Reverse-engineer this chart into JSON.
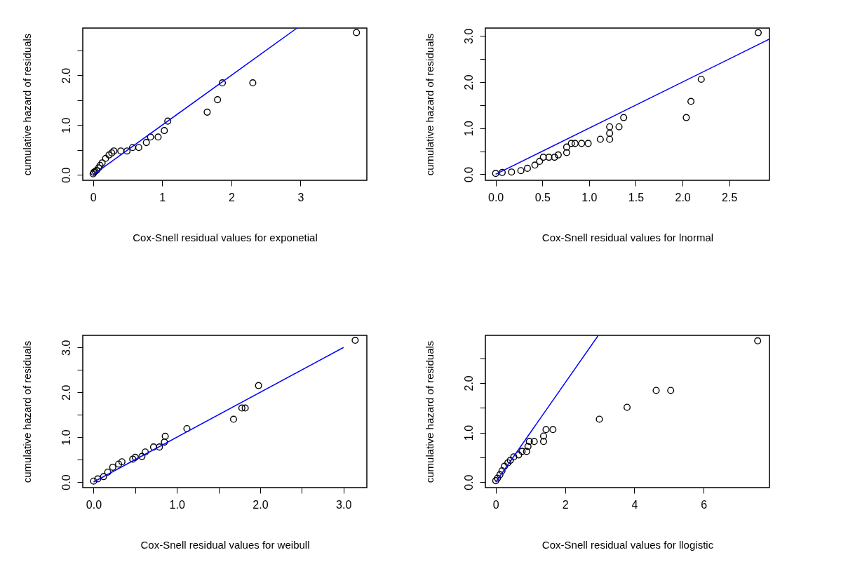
{
  "chart_data": [
    {
      "type": "scatter",
      "xlabel": "Cox-Snell residual values for exponetial",
      "ylabel": "cumulative hazard of residuals",
      "xlim": [
        -0.15,
        3.96
      ],
      "ylim": [
        -0.11,
        2.95
      ],
      "xticks": [
        0,
        1,
        2,
        3
      ],
      "yticks": [
        {
          "value": 0,
          "label": "0.0"
        },
        {
          "value": 0.5,
          "label": null
        },
        {
          "value": 1,
          "label": "1.0"
        },
        {
          "value": 1.5,
          "label": null
        },
        {
          "value": 2,
          "label": "2.0"
        },
        {
          "value": 2.5,
          "label": null
        }
      ],
      "grid": false,
      "series": [
        {
          "marker": "circle",
          "color": "#000000",
          "x": [
            3.81,
            2.31,
            1.87,
            1.8,
            1.65,
            1.08,
            1.03,
            0.94,
            0.83,
            0.77,
            0.66,
            0.57,
            0.49,
            0.4,
            0.3,
            0.27,
            0.23,
            0.18,
            0.13,
            0.1,
            0.08,
            0.05,
            0.03,
            0.01,
            0.0
          ],
          "values": [
            2.86,
            1.85,
            1.85,
            1.51,
            1.26,
            1.08,
            0.89,
            0.76,
            0.76,
            0.65,
            0.55,
            0.55,
            0.48,
            0.48,
            0.48,
            0.44,
            0.4,
            0.33,
            0.24,
            0.19,
            0.14,
            0.09,
            0.07,
            0.05,
            0.02
          ]
        },
        {
          "type": "line",
          "marker": "none",
          "color": "#0000ff",
          "x": [
            0,
            2.95
          ],
          "values": [
            0,
            2.95
          ]
        }
      ]
    },
    {
      "type": "scatter",
      "xlabel": "Cox-Snell residual values for lnormal",
      "ylabel": "cumulative hazard of residuals",
      "xlim": [
        -0.11,
        2.93
      ],
      "ylim": [
        -0.13,
        3.17
      ],
      "xticks": [
        {
          "value": 0,
          "label": "0.0"
        },
        0.5,
        {
          "value": 1,
          "label": "1.0"
        },
        1.5,
        {
          "value": 2,
          "label": "2.0"
        },
        2.5
      ],
      "yticks": [
        {
          "value": 0,
          "label": "0.0"
        },
        {
          "value": 0.5,
          "label": null
        },
        {
          "value": 1,
          "label": "1.0"
        },
        {
          "value": 1.5,
          "label": null
        },
        {
          "value": 2,
          "label": "2.0"
        },
        {
          "value": 2.5,
          "label": null
        },
        {
          "value": 3,
          "label": "3.0"
        }
      ],
      "grid": false,
      "series": [
        {
          "marker": "circle",
          "color": "#000000",
          "x": [
            2.81,
            2.2,
            2.09,
            2.04,
            1.37,
            1.32,
            1.22,
            1.22,
            1.22,
            1.12,
            0.99,
            0.92,
            0.85,
            0.81,
            0.76,
            0.76,
            0.67,
            0.63,
            0.57,
            0.51,
            0.47,
            0.42,
            0.34,
            0.27,
            0.17,
            0.07,
            0.0
          ],
          "values": [
            3.07,
            2.06,
            1.58,
            1.23,
            1.23,
            1.03,
            1.03,
            0.89,
            0.76,
            0.76,
            0.67,
            0.67,
            0.67,
            0.67,
            0.59,
            0.47,
            0.42,
            0.37,
            0.37,
            0.37,
            0.28,
            0.2,
            0.13,
            0.08,
            0.05,
            0.04,
            0.02
          ]
        },
        {
          "type": "line",
          "marker": "none",
          "color": "#0000ff",
          "x": [
            0,
            2.93
          ],
          "values": [
            0,
            2.93
          ]
        }
      ]
    },
    {
      "type": "scatter",
      "xlabel": "Cox-Snell residual values for weibull",
      "ylabel": "cumulative hazard of residuals",
      "xlim": [
        -0.13,
        3.28
      ],
      "ylim": [
        -0.125,
        3.27
      ],
      "xticks": [
        {
          "value": 0,
          "label": "0.0"
        },
        {
          "value": 0.5,
          "label": null
        },
        {
          "value": 1,
          "label": "1.0"
        },
        {
          "value": 1.5,
          "label": null
        },
        {
          "value": 2,
          "label": "2.0"
        },
        {
          "value": 2.5,
          "label": null
        },
        {
          "value": 3,
          "label": "3.0"
        }
      ],
      "yticks": [
        {
          "value": 0,
          "label": "0.0"
        },
        {
          "value": 0.5,
          "label": null
        },
        {
          "value": 1,
          "label": "1.0"
        },
        {
          "value": 1.5,
          "label": null
        },
        {
          "value": 2,
          "label": "2.0"
        },
        {
          "value": 2.5,
          "label": null
        },
        {
          "value": 3,
          "label": "3.0"
        }
      ],
      "grid": false,
      "series": [
        {
          "marker": "circle",
          "color": "#000000",
          "x": [
            3.14,
            1.98,
            1.82,
            1.78,
            1.68,
            1.12,
            0.86,
            0.85,
            0.79,
            0.72,
            0.62,
            0.58,
            0.5,
            0.47,
            0.34,
            0.3,
            0.23,
            0.17,
            0.12,
            0.05,
            0.0
          ],
          "values": [
            3.16,
            2.15,
            1.65,
            1.65,
            1.4,
            1.19,
            1.02,
            0.89,
            0.78,
            0.78,
            0.67,
            0.57,
            0.55,
            0.51,
            0.45,
            0.4,
            0.33,
            0.22,
            0.12,
            0.07,
            0.02
          ]
        },
        {
          "type": "line",
          "marker": "none",
          "color": "#0000ff",
          "x": [
            0,
            3
          ],
          "values": [
            0,
            3
          ]
        }
      ]
    },
    {
      "type": "scatter",
      "xlabel": "Cox-Snell residual values for llogistic",
      "ylabel": "cumulative hazard of residuals",
      "xlim": [
        -0.3,
        7.9
      ],
      "ylim": [
        -0.11,
        2.96
      ],
      "xticks": [
        0,
        2,
        4,
        6
      ],
      "yticks": [
        {
          "value": 0,
          "label": "0.0"
        },
        {
          "value": 0.5,
          "label": null
        },
        {
          "value": 1,
          "label": "1.0"
        },
        {
          "value": 1.5,
          "label": null
        },
        {
          "value": 2,
          "label": "2.0"
        },
        {
          "value": 2.5,
          "label": null
        }
      ],
      "grid": false,
      "series": [
        {
          "marker": "circle",
          "color": "#000000",
          "x": [
            7.56,
            5.05,
            4.63,
            3.79,
            2.99,
            1.65,
            1.45,
            1.38,
            1.38,
            1.11,
            0.97,
            0.93,
            0.89,
            0.76,
            0.66,
            0.52,
            0.42,
            0.35,
            0.25,
            0.18,
            0.12,
            0.05,
            0.0
          ],
          "values": [
            2.85,
            1.85,
            1.85,
            1.51,
            1.27,
            1.06,
            1.06,
            0.93,
            0.82,
            0.82,
            0.82,
            0.72,
            0.62,
            0.62,
            0.55,
            0.51,
            0.44,
            0.39,
            0.32,
            0.23,
            0.15,
            0.08,
            0.03
          ]
        },
        {
          "type": "line",
          "marker": "none",
          "color": "#0000ff",
          "x": [
            0,
            2.96
          ],
          "values": [
            0,
            2.96
          ]
        }
      ]
    }
  ]
}
